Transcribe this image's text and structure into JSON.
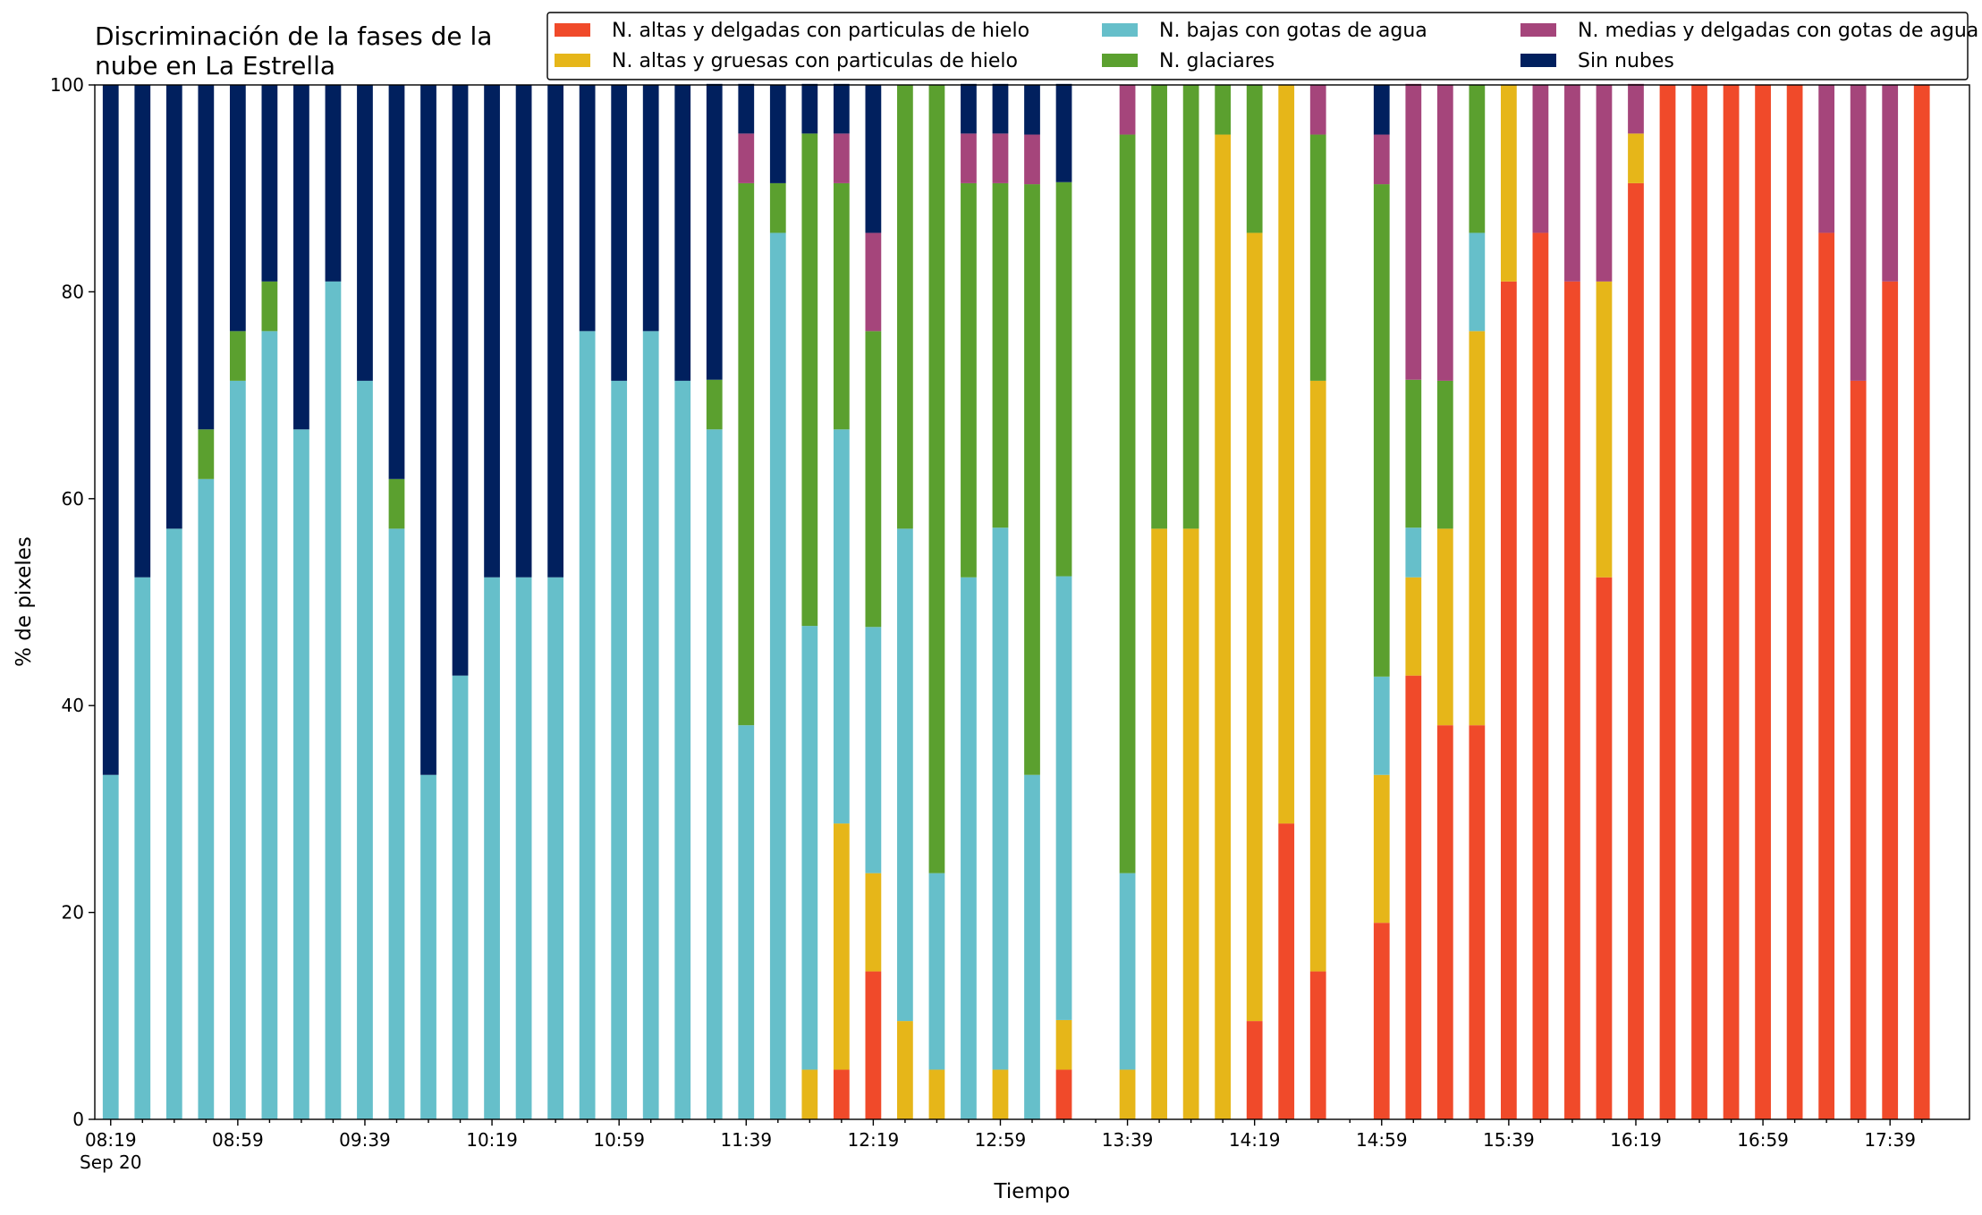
{
  "chart_data": {
    "type": "stacked_bar",
    "title": [
      "Discriminación de la fases de la",
      "nube en La Estrella"
    ],
    "x_label": "Tiempo",
    "y_label": "% de pixeles",
    "date_label": "Sep 20",
    "categories": [
      "08:19",
      null,
      null,
      null,
      "08:59",
      null,
      null,
      null,
      "09:39",
      null,
      null,
      null,
      "10:19",
      null,
      null,
      null,
      "10:59",
      null,
      null,
      null,
      "11:39",
      null,
      null,
      null,
      "12:19",
      null,
      null,
      null,
      "12:59",
      null,
      null,
      null,
      "13:39",
      null,
      null,
      null,
      "14:19",
      null,
      null,
      null,
      "14:59",
      null,
      null,
      null,
      "15:39",
      null,
      null,
      null,
      "16:19",
      null,
      null,
      null,
      "16:59",
      null,
      null,
      null,
      "17:39",
      null
    ],
    "ylim": [
      0,
      100
    ],
    "yticks": [
      0,
      20,
      40,
      60,
      80,
      100
    ],
    "legend": "top-right",
    "series": [
      {
        "name": "N. altas y delgadas con particulas de hielo",
        "color": "#f04a2a",
        "values": [
          0,
          0,
          0,
          0,
          0,
          0,
          0,
          0,
          0,
          0,
          0,
          0,
          0,
          0,
          0,
          0,
          0,
          0,
          0,
          0,
          0,
          0,
          0,
          4.8,
          14.3,
          0,
          0,
          0,
          0,
          0,
          4.8,
          null,
          0,
          0,
          0,
          0,
          9.5,
          28.6,
          14.3,
          null,
          19,
          42.9,
          38.1,
          38.1,
          81,
          85.7,
          81,
          52.4,
          90.5,
          100,
          100,
          100,
          100,
          100,
          85.7,
          71.4,
          81,
          100
        ]
      },
      {
        "name": "N. altas y gruesas con particulas de hielo",
        "color": "#e6b619",
        "values": [
          0,
          0,
          0,
          0,
          0,
          0,
          0,
          0,
          0,
          0,
          0,
          0,
          0,
          0,
          0,
          0,
          0,
          0,
          0,
          0,
          0,
          0,
          4.8,
          23.8,
          9.5,
          9.5,
          4.8,
          0,
          4.8,
          0,
          4.8,
          null,
          4.8,
          57.1,
          57.1,
          95.2,
          76.2,
          71.4,
          57.1,
          null,
          14.3,
          9.5,
          19,
          38.1,
          19,
          0,
          0,
          28.6,
          4.8,
          0,
          0,
          0,
          0,
          0,
          0,
          0,
          0,
          0
        ]
      },
      {
        "name": "N. bajas con gotas de agua",
        "color": "#66bfca",
        "values": [
          33.3,
          52.4,
          57.1,
          61.9,
          71.4,
          76.2,
          66.7,
          81,
          71.4,
          57.1,
          33.3,
          42.9,
          52.4,
          52.4,
          52.4,
          76.2,
          71.4,
          76.2,
          71.4,
          66.7,
          38.1,
          85.7,
          42.9,
          38.1,
          23.8,
          47.6,
          19,
          52.4,
          52.4,
          33.3,
          42.9,
          null,
          19,
          0,
          0,
          0,
          0,
          0,
          0,
          null,
          9.5,
          4.8,
          0,
          9.5,
          0,
          0,
          0,
          0,
          0,
          0,
          0,
          0,
          0,
          0,
          0,
          0,
          0,
          0
        ]
      },
      {
        "name": "N. glaciares",
        "color": "#5ba02f",
        "values": [
          0,
          0,
          0,
          4.8,
          4.8,
          4.8,
          0,
          0,
          0,
          4.8,
          0,
          0,
          0,
          0,
          0,
          0,
          0,
          0,
          0,
          4.8,
          52.4,
          4.8,
          47.6,
          23.8,
          28.6,
          42.9,
          76.2,
          38.1,
          33.3,
          57.1,
          38.1,
          null,
          71.4,
          42.9,
          42.9,
          4.8,
          14.3,
          0,
          23.8,
          null,
          47.6,
          14.3,
          14.3,
          14.3,
          0,
          0,
          0,
          0,
          0,
          0,
          0,
          0,
          0,
          0,
          0,
          0,
          0,
          0
        ]
      },
      {
        "name": "N. medias y delgadas con gotas de agua",
        "color": "#a5457b",
        "values": [
          0,
          0,
          0,
          0,
          0,
          0,
          0,
          0,
          0,
          0,
          0,
          0,
          0,
          0,
          0,
          0,
          0,
          0,
          0,
          0,
          4.8,
          0,
          0,
          4.8,
          9.5,
          0,
          0,
          4.8,
          4.8,
          4.8,
          0,
          null,
          4.8,
          0,
          0,
          0,
          0,
          0,
          4.8,
          null,
          4.8,
          28.6,
          28.6,
          0,
          0,
          14.3,
          19,
          19,
          4.8,
          0,
          0,
          0,
          0,
          0,
          14.3,
          28.6,
          19,
          0
        ]
      },
      {
        "name": "Sin nubes",
        "color": "#01205e",
        "values": [
          66.7,
          47.6,
          42.9,
          33.3,
          23.8,
          19,
          33.3,
          19,
          28.6,
          38.1,
          66.7,
          57.1,
          47.6,
          47.6,
          47.6,
          23.8,
          28.6,
          23.8,
          28.6,
          28.6,
          4.8,
          9.5,
          4.8,
          4.8,
          14.3,
          0,
          0,
          4.8,
          4.8,
          4.8,
          9.5,
          null,
          0,
          0,
          0,
          0,
          0,
          0,
          0,
          null,
          4.8,
          0,
          0,
          0,
          0,
          0,
          0,
          0,
          0,
          0,
          0,
          0,
          0,
          0,
          0,
          0,
          0,
          0
        ]
      }
    ]
  }
}
